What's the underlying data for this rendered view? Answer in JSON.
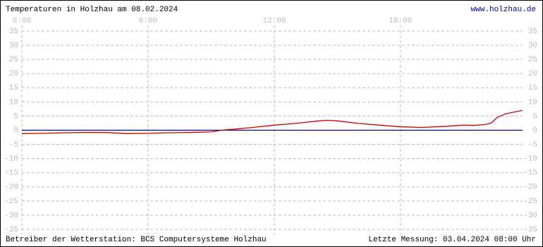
{
  "chart_data": {
    "type": "line",
    "title": "Temperaturen in Holzhau am 08.02.2024",
    "url": "www.holzhau.de",
    "footer_left": "Betreiber der Wetterstation: BCS Computersysteme Holzhau",
    "footer_right": "Letzte Messung: 03.04.2024 08:00 Uhr",
    "x": [
      0,
      1,
      2,
      3,
      4,
      5,
      6,
      7,
      8,
      9,
      9.5,
      10,
      11,
      12,
      13,
      14,
      14.5,
      15,
      16,
      17,
      18,
      19,
      20,
      21,
      21.5,
      22,
      22.3,
      22.6,
      23,
      23.8
    ],
    "values": [
      -1.2,
      -1.1,
      -0.9,
      -0.8,
      -0.8,
      -1.2,
      -1.1,
      -0.9,
      -0.8,
      -0.6,
      0,
      0.3,
      1.0,
      1.8,
      2.4,
      3.2,
      3.5,
      3.3,
      2.4,
      1.8,
      1.2,
      1.0,
      1.3,
      1.8,
      1.7,
      2.0,
      2.5,
      4.5,
      5.8,
      7.0
    ],
    "color": "#cc0000",
    "zero_color": "#000099",
    "xlim": [
      0,
      23.8
    ],
    "xticks": [
      {
        "value": 0,
        "label": "0:00"
      },
      {
        "value": 6,
        "label": "6:00"
      },
      {
        "value": 12,
        "label": "12:00"
      },
      {
        "value": 18,
        "label": "18:00"
      }
    ],
    "ylim": [
      -35,
      35
    ],
    "yticks": [
      -35,
      -30,
      -25,
      -20,
      -15,
      -10,
      -5,
      0,
      5,
      10,
      15,
      20,
      25,
      30,
      35
    ],
    "grid": true
  }
}
